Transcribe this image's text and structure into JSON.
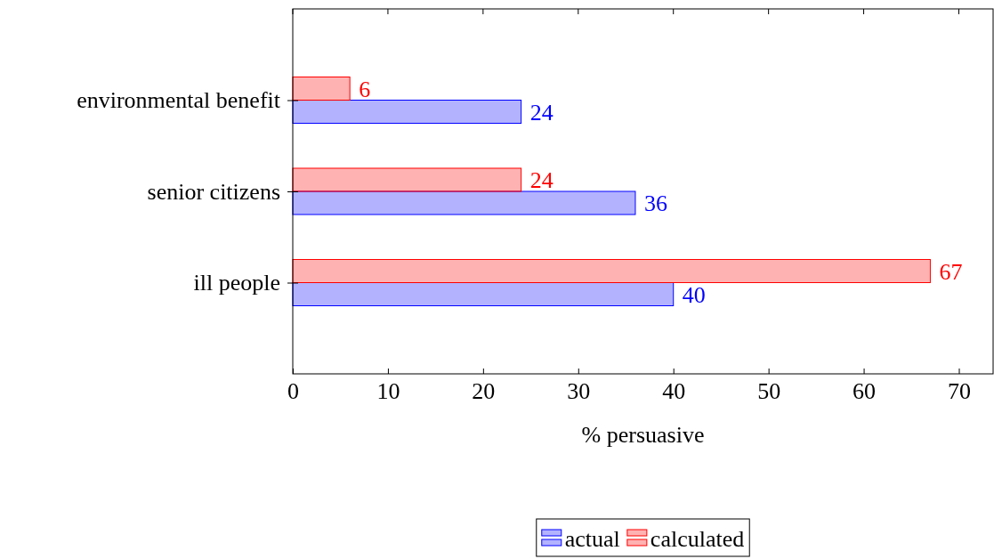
{
  "chart_data": {
    "type": "bar",
    "orientation": "horizontal",
    "xlabel": "% persuasive",
    "categories": [
      "environmental benefit",
      "senior citizens",
      "ill people"
    ],
    "series": [
      {
        "name": "actual",
        "color": "#0000ff",
        "values": [
          24,
          36,
          40
        ]
      },
      {
        "name": "calculated",
        "color": "#ff0000",
        "values": [
          6,
          24,
          67
        ]
      }
    ],
    "xlim": [
      0,
      73.6
    ],
    "xticks": [
      0,
      10,
      20,
      30,
      40,
      50,
      60,
      70
    ],
    "data_labels": true,
    "legend": "bottom",
    "grid": false
  }
}
